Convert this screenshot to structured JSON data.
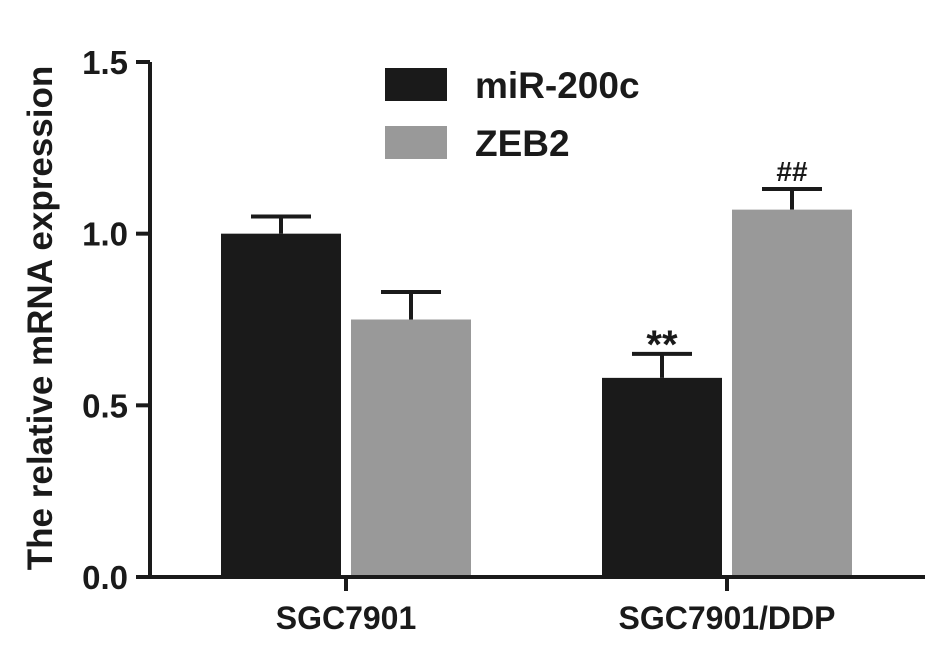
{
  "chart_data": {
    "type": "bar",
    "title": "",
    "xlabel": "",
    "ylabel": "The relative mRNA expression",
    "ylim": [
      0,
      1.5
    ],
    "yticks": [
      "0.0",
      "0.5",
      "1.0",
      "1.5"
    ],
    "ytick_values": [
      0,
      0.5,
      1.0,
      1.5
    ],
    "categories": [
      "SGC7901",
      "SGC7901/DDP"
    ],
    "series": [
      {
        "name": "miR-200c",
        "color": "#1a1a1a",
        "values": [
          1.0,
          0.58
        ],
        "errors": [
          0.05,
          0.07
        ],
        "annotations": [
          "",
          "**"
        ]
      },
      {
        "name": "ZEB2",
        "color": "#999999",
        "values": [
          0.75,
          1.07
        ],
        "errors": [
          0.08,
          0.06
        ],
        "annotations": [
          "",
          "##"
        ]
      }
    ],
    "legend_position": "top-center",
    "grid": false
  }
}
